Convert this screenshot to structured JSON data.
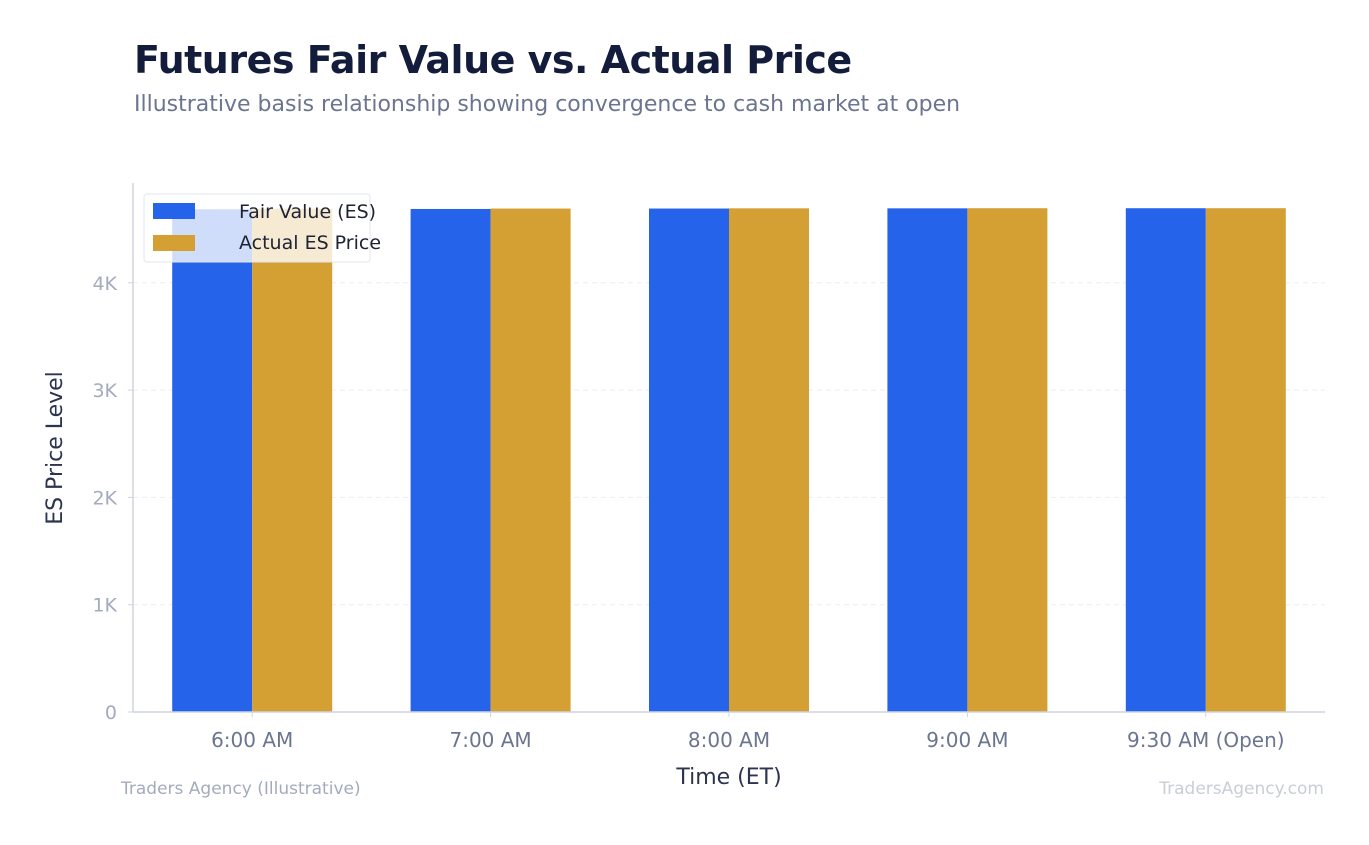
{
  "header": {
    "title": "Futures Fair Value vs. Actual Price",
    "subtitle": "Illustrative basis relationship showing convergence to cash market at open"
  },
  "footer": {
    "source": "Traders Agency (Illustrative)",
    "watermark": "TradersAgency.com"
  },
  "colors": {
    "fair_value": "#2563eb",
    "actual": "#d4a033",
    "axis": "#cfd4dd",
    "grid": "#eceef2"
  },
  "chart_data": {
    "type": "bar",
    "title": "Futures Fair Value vs. Actual Price",
    "subtitle": "Illustrative basis relationship showing convergence to cash market at open",
    "xlabel": "Time (ET)",
    "ylabel": "ES Price Level",
    "categories": [
      "6:00 AM",
      "7:00 AM",
      "8:00 AM",
      "9:00 AM",
      "9:30 AM (Open)"
    ],
    "series": [
      {
        "name": "Fair Value (ES)",
        "values": [
          4685,
          4688,
          4692,
          4694,
          4695
        ]
      },
      {
        "name": "Actual ES Price",
        "values": [
          4690,
          4692,
          4694,
          4695,
          4695
        ]
      }
    ],
    "ylim": [
      0,
      4930
    ],
    "yticks": [
      0,
      1000,
      2000,
      3000,
      4000
    ],
    "ytick_labels": [
      "0",
      "1K",
      "2K",
      "3K",
      "4K"
    ],
    "grid": true,
    "legend": "top-left"
  }
}
